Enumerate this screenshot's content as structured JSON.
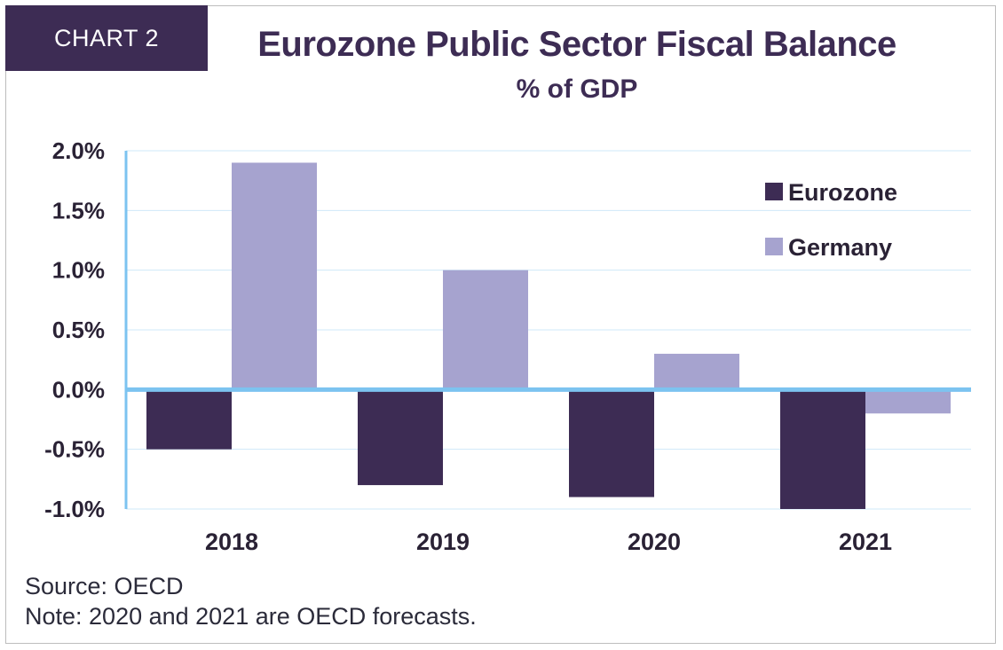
{
  "badge": "CHART 2",
  "colors": {
    "eurozone": "#3d2c54",
    "germany": "#a6a3cf",
    "axis": "#7cc3f0",
    "grid": "#cfe8f8"
  },
  "footer": {
    "source": "Source: OECD",
    "note": "Note: 2020 and 2021 are OECD forecasts."
  },
  "chart_data": {
    "type": "bar",
    "title": "Eurozone Public Sector Fiscal Balance",
    "subtitle": "% of GDP",
    "categories": [
      "2018",
      "2019",
      "2020",
      "2021"
    ],
    "series": [
      {
        "name": "Eurozone",
        "values": [
          -0.5,
          -0.8,
          -0.9,
          -1.0
        ]
      },
      {
        "name": "Germany",
        "values": [
          1.9,
          1.0,
          0.3,
          -0.2
        ]
      }
    ],
    "ylim": [
      -1.0,
      2.0
    ],
    "yticks": [
      "2.0%",
      "1.5%",
      "1.0%",
      "0.5%",
      "0.0%",
      "-0.5%",
      "-1.0%"
    ],
    "ytick_values": [
      2.0,
      1.5,
      1.0,
      0.5,
      0.0,
      -0.5,
      -1.0
    ],
    "grid": true,
    "legend_position": "top-right"
  }
}
